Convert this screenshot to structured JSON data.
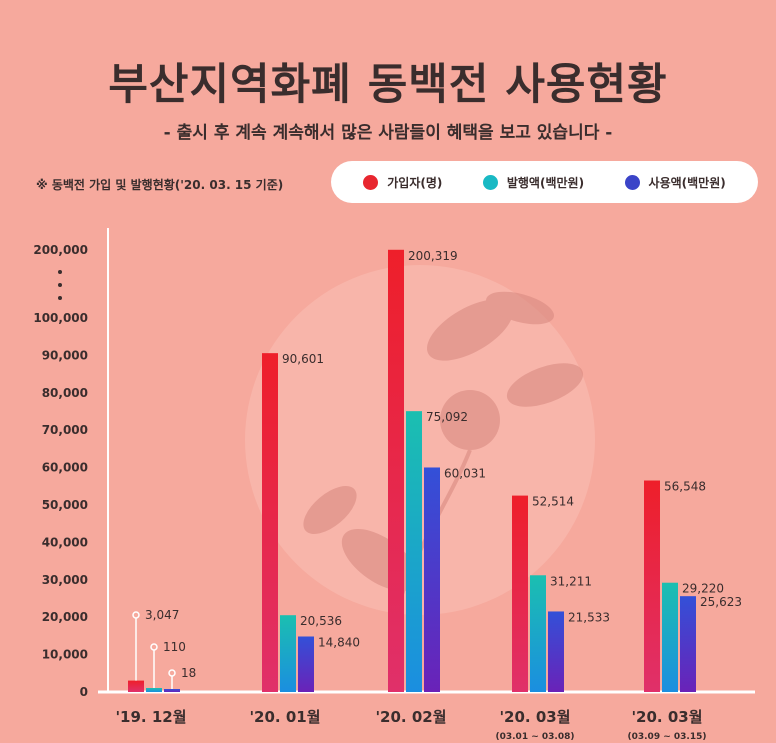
{
  "header": {
    "title": "부산지역화폐 동백전 사용현황",
    "subtitle": "- 출시 후 계속 계속해서 많은 사람들이 혜택을 보고 있습니다 -",
    "note": "※ 동백전 가입 및 발행현황('20. 03. 15 기준)"
  },
  "legend": [
    {
      "label": "가입자(명)",
      "color": "#e8262f"
    },
    {
      "label": "발행액(백만원)",
      "color": "#19b9c4"
    },
    {
      "label": "사용액(백만원)",
      "color": "#3b44c8"
    }
  ],
  "chart_data": {
    "type": "bar",
    "categories": [
      "'19. 12월",
      "'20. 01월",
      "'20. 02월",
      "'20. 03월",
      "'20. 03월"
    ],
    "category_sublabels": [
      "",
      "",
      "",
      "(03.01 ~ 03.08)",
      "(03.09 ~ 03.15)"
    ],
    "series": [
      {
        "name": "가입자(명)",
        "values": [
          3047,
          90601,
          200319,
          52514,
          56548
        ],
        "labels": [
          "3,047",
          "90,601",
          "200,319",
          "52,514",
          "56,548"
        ]
      },
      {
        "name": "발행액(백만원)",
        "values": [
          110,
          20536,
          75092,
          31211,
          29220
        ],
        "labels": [
          "110",
          "20,536",
          "75,092",
          "31,211",
          "29,220"
        ]
      },
      {
        "name": "사용액(백만원)",
        "values": [
          18,
          14840,
          60031,
          21533,
          25623
        ],
        "labels": [
          "18",
          "14,840",
          "60,031",
          "21,533",
          "25,623"
        ]
      }
    ],
    "yticks": [
      "200,000",
      "100,000",
      "90,000",
      "80,000",
      "70,000",
      "60,000",
      "50,000",
      "40,000",
      "30,000",
      "20,000",
      "10,000",
      "0"
    ],
    "y_axis_break": "100,000 ~ 200,000",
    "ylim": [
      0,
      200000
    ],
    "grid": false
  }
}
